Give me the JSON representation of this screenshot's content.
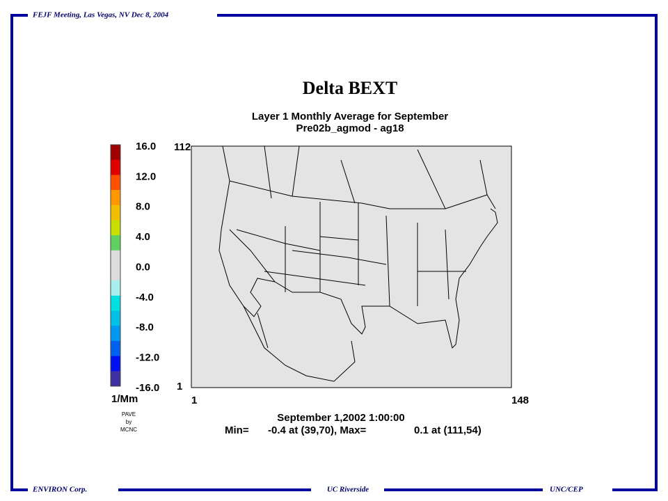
{
  "header": {
    "meeting": "FEJF Meeting, Las Vegas, NV Dec 8, 2004"
  },
  "footer": {
    "left": "ENVIRON Corp.",
    "center": "UC Riverside",
    "right": "UNC/CEP"
  },
  "plot": {
    "title": "Delta BEXT",
    "subtitle": [
      "Layer 1 Monthly Average for September",
      "Pre02b_agmod - ag18"
    ],
    "colorbar": {
      "labels": [
        "16.0",
        "12.0",
        "8.0",
        "4.0",
        "0.0",
        "-4.0",
        "-8.0",
        "-12.0",
        "-16.0"
      ],
      "colors": [
        "#a00000",
        "#e00000",
        "#ff5000",
        "#ff9800",
        "#f0c000",
        "#c8e000",
        "#60d060",
        "#dcdcdc",
        "#dcdcdc",
        "#a8f0f0",
        "#00e0e0",
        "#00c0e8",
        "#0098f0",
        "#0060f0",
        "#0010f0",
        "#4030a0"
      ],
      "units": "1/Mm",
      "credit": [
        "PAVE",
        "by",
        "MCNC"
      ]
    },
    "axis": {
      "y_top": "112",
      "y_bottom": "1",
      "x_left": "1",
      "x_right": "148"
    },
    "time": "September 1,2002 1:00:00",
    "stats": {
      "min_label": "Min=",
      "min_value": "-0.4 at (39,70), Max=",
      "max_value": "0.1 at (111,54)"
    }
  }
}
